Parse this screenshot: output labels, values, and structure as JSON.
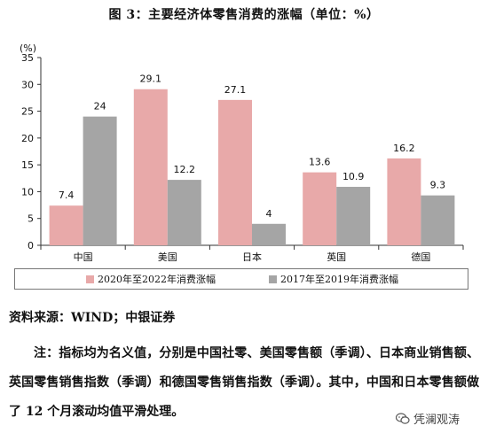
{
  "title": "图 3：主要经济体零售消费的涨幅（单位：%）",
  "chart_data": {
    "type": "bar",
    "unit_label": "(%)",
    "categories": [
      "中国",
      "美国",
      "日本",
      "英国",
      "德国"
    ],
    "series": [
      {
        "name": "2020年至2022年消费涨幅",
        "values": [
          7.4,
          29.1,
          27.1,
          13.6,
          16.2
        ],
        "color": "#e8a9a9"
      },
      {
        "name": "2017年至2019年消费涨幅",
        "values": [
          24,
          12.2,
          4,
          10.9,
          9.3
        ],
        "color": "#a5a5a5"
      }
    ],
    "ylim": [
      0,
      35
    ],
    "yticks": [
      0,
      5,
      10,
      15,
      20,
      25,
      30,
      35
    ],
    "legend_position": "bottom",
    "grid": false
  },
  "source": "资料来源：WIND；中银证券",
  "note": "注：指标均为名义值，分别是中国社零、美国零售额（季调）、日本商业销售额、英国零售销售指数（季调）和德国零售销售指数（季调）。其中，中国和日本零售额做了 12 个月滚动均值平滑处理。",
  "watermark": "凭澜观涛"
}
